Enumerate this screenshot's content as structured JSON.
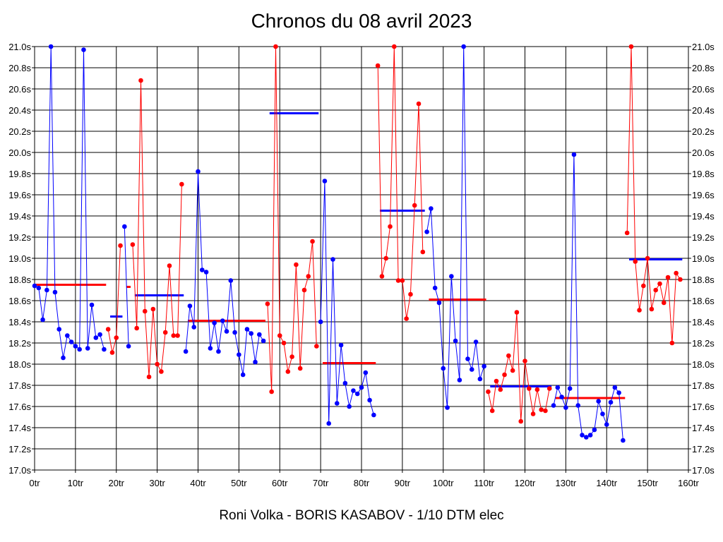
{
  "colors": {
    "blue": "#0000ff",
    "red": "#ff0000",
    "grid": "#000000",
    "background": "#ffffff"
  },
  "chart_data": {
    "type": "line",
    "title": "Chronos du 08 avril 2023",
    "footer": "Roni Volka - BORIS KASABOV - 1/10 DTM elec",
    "xlim": [
      0,
      160
    ],
    "ylim": [
      17.0,
      21.0
    ],
    "x_ticks": [
      0,
      10,
      20,
      30,
      40,
      50,
      60,
      70,
      80,
      90,
      100,
      110,
      120,
      130,
      140,
      150,
      160
    ],
    "x_tick_labels": [
      "0tr",
      "10tr",
      "20tr",
      "30tr",
      "40tr",
      "50tr",
      "60tr",
      "70tr",
      "80tr",
      "90tr",
      "100tr",
      "110tr",
      "120tr",
      "130tr",
      "140tr",
      "150tr",
      "160tr"
    ],
    "y_ticks": [
      17.0,
      17.2,
      17.4,
      17.6,
      17.8,
      18.0,
      18.2,
      18.4,
      18.6,
      18.8,
      19.0,
      19.2,
      19.4,
      19.6,
      19.8,
      20.0,
      20.2,
      20.4,
      20.6,
      20.8,
      21.0
    ],
    "y_tick_labels": [
      "17.0s",
      "17.2s",
      "17.4s",
      "17.6s",
      "17.8s",
      "18.0s",
      "18.2s",
      "18.4s",
      "18.6s",
      "18.8s",
      "19.0s",
      "19.2s",
      "19.4s",
      "19.6s",
      "19.8s",
      "20.0s",
      "20.2s",
      "20.4s",
      "20.6s",
      "20.8s",
      "21.0s"
    ],
    "grid": true,
    "series": [
      {
        "color": "blue",
        "start_lap": 0,
        "values": [
          18.74,
          18.72,
          18.42,
          18.7,
          21.0,
          18.68,
          18.33,
          18.06,
          18.27,
          18.21,
          18.17,
          18.14,
          20.97,
          18.15,
          18.56,
          18.25,
          18.28,
          18.14
        ]
      },
      {
        "color": "red",
        "start_lap": 18,
        "values": [
          18.33,
          18.11,
          18.25,
          19.12
        ]
      },
      {
        "color": "blue",
        "start_lap": 22,
        "values": [
          19.3,
          18.17
        ]
      },
      {
        "color": "red",
        "start_lap": 24,
        "values": [
          19.13,
          18.34,
          20.68,
          18.5,
          17.88,
          18.52,
          18.0,
          17.93,
          18.3,
          18.93,
          18.27,
          18.27,
          19.7
        ]
      },
      {
        "color": "blue",
        "start_lap": 37,
        "values": [
          18.12,
          18.55,
          18.35,
          19.82,
          18.89,
          18.87,
          18.15,
          18.39,
          18.12,
          18.41,
          18.31,
          18.79,
          18.3,
          18.09,
          17.9,
          18.33,
          18.29,
          18.02,
          18.28,
          18.22
        ]
      },
      {
        "color": "red",
        "start_lap": 57,
        "values": [
          18.57,
          17.74,
          21.0,
          18.27,
          18.2,
          17.93,
          18.07,
          18.94,
          17.96,
          18.7,
          18.83,
          19.16,
          18.17
        ]
      },
      {
        "color": "blue",
        "start_lap": 70,
        "values": [
          18.4,
          19.73,
          17.44,
          18.99,
          17.63,
          18.18,
          17.82,
          17.6,
          17.75,
          17.72,
          17.78,
          17.92,
          17.66,
          17.52
        ]
      },
      {
        "color": "red",
        "start_lap": 84,
        "values": [
          20.82,
          18.83,
          19.0,
          19.3,
          21.0,
          18.79,
          18.79,
          18.43,
          18.66,
          19.5,
          20.46,
          19.06
        ]
      },
      {
        "color": "blue",
        "start_lap": 96,
        "values": [
          19.25,
          19.47,
          18.72,
          18.58,
          17.96,
          17.59,
          18.83,
          18.22,
          17.85,
          21.0,
          18.05,
          17.95,
          18.21,
          17.86,
          17.98
        ]
      },
      {
        "color": "red",
        "start_lap": 111,
        "values": [
          17.74,
          17.56,
          17.84,
          17.76,
          17.9,
          18.08,
          17.94,
          18.49,
          17.46,
          18.03,
          17.77,
          17.53,
          17.76,
          17.57,
          17.56,
          17.77
        ]
      },
      {
        "color": "blue",
        "start_lap": 127,
        "values": [
          17.61,
          17.78,
          17.69,
          17.59,
          17.77,
          19.98,
          17.61,
          17.33,
          17.31,
          17.33,
          17.38,
          17.65,
          17.53,
          17.43,
          17.64,
          17.78,
          17.73,
          17.28
        ]
      },
      {
        "color": "red",
        "start_lap": 145,
        "values": [
          19.24,
          21.0,
          18.97,
          18.51,
          18.74,
          19.0,
          18.52,
          18.7,
          18.76,
          18.58,
          18.82,
          18.2,
          18.86,
          18.8
        ]
      }
    ],
    "averages": [
      {
        "color": "red",
        "x0": 0,
        "x1": 17.5,
        "y": 18.75
      },
      {
        "color": "blue",
        "x0": 18.5,
        "x1": 21.5,
        "y": 18.45
      },
      {
        "color": "red",
        "x0": 22.5,
        "x1": 23.5,
        "y": 18.73
      },
      {
        "color": "blue",
        "x0": 24.5,
        "x1": 36.5,
        "y": 18.65
      },
      {
        "color": "red",
        "x0": 37.5,
        "x1": 56.5,
        "y": 18.41
      },
      {
        "color": "blue",
        "x0": 57.5,
        "x1": 69.5,
        "y": 20.37
      },
      {
        "color": "red",
        "x0": 70.5,
        "x1": 83.5,
        "y": 18.01
      },
      {
        "color": "blue",
        "x0": 84.5,
        "x1": 95.5,
        "y": 19.45
      },
      {
        "color": "red",
        "x0": 96.5,
        "x1": 110.5,
        "y": 18.61
      },
      {
        "color": "blue",
        "x0": 111.5,
        "x1": 126.5,
        "y": 17.79
      },
      {
        "color": "red",
        "x0": 127.5,
        "x1": 144.5,
        "y": 17.68
      },
      {
        "color": "blue",
        "x0": 145.5,
        "x1": 158.5,
        "y": 18.99
      }
    ]
  }
}
